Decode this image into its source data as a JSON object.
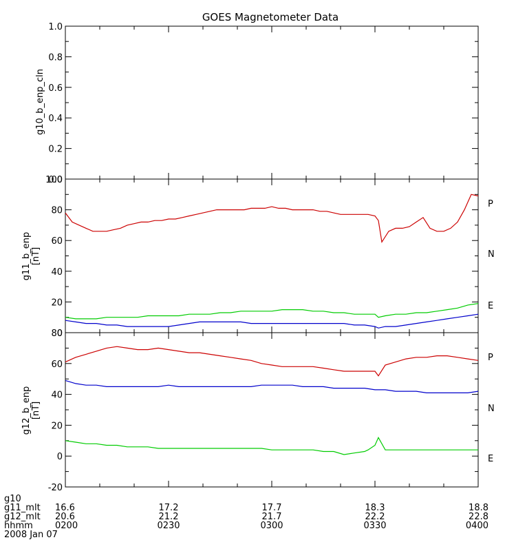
{
  "title": "GOES Magnetometer Data",
  "colors": {
    "P": "#cc0000",
    "N": "#00cc00",
    "E": "#0000cc"
  },
  "chart_data": [
    {
      "type": "line",
      "ylabel": "g10_b_enp_cln",
      "ylim": [
        0,
        1
      ],
      "yticks": [
        0.0,
        0.2,
        0.4,
        0.6,
        0.8,
        1.0
      ],
      "ytick_labels": [
        "0.0",
        "0.2",
        "0.4",
        "0.6",
        "0.8",
        "1.0"
      ],
      "series": []
    },
    {
      "type": "line",
      "ylabel": "g11_b_enp",
      "yunit": "[nT]",
      "ylim": [
        0,
        100
      ],
      "yticks": [
        0,
        20,
        40,
        60,
        80,
        100
      ],
      "ytick_labels": [
        "0",
        "20",
        "40",
        "60",
        "80",
        "100"
      ],
      "series": [
        {
          "name": "P",
          "color": "#cc0000",
          "x": [
            "02:00",
            "02:02",
            "02:04",
            "02:06",
            "02:08",
            "02:10",
            "02:12",
            "02:14",
            "02:16",
            "02:18",
            "02:20",
            "02:22",
            "02:24",
            "02:26",
            "02:28",
            "02:30",
            "02:32",
            "02:34",
            "02:36",
            "02:38",
            "02:40",
            "02:42",
            "02:44",
            "02:46",
            "02:48",
            "02:50",
            "02:52",
            "02:54",
            "02:56",
            "02:58",
            "03:00",
            "03:02",
            "03:04",
            "03:06",
            "03:08",
            "03:10",
            "03:12",
            "03:14",
            "03:16",
            "03:18",
            "03:20",
            "03:22",
            "03:24",
            "03:26",
            "03:28",
            "03:30",
            "03:31",
            "03:32",
            "03:34",
            "03:36",
            "03:38",
            "03:40",
            "03:42",
            "03:44",
            "03:46",
            "03:48",
            "03:50",
            "03:52",
            "03:54",
            "03:56",
            "03:58",
            "04:00"
          ],
          "values": [
            78,
            72,
            70,
            68,
            66,
            66,
            66,
            67,
            68,
            70,
            71,
            72,
            72,
            73,
            73,
            74,
            74,
            75,
            76,
            77,
            78,
            79,
            80,
            80,
            80,
            80,
            80,
            81,
            81,
            81,
            82,
            81,
            81,
            80,
            80,
            80,
            80,
            79,
            79,
            78,
            77,
            77,
            77,
            77,
            77,
            76,
            73,
            59,
            66,
            68,
            68,
            69,
            72,
            75,
            68,
            66,
            66,
            68,
            72,
            80,
            90,
            89
          ]
        },
        {
          "name": "N",
          "color": "#00cc00",
          "x": [
            "02:00",
            "02:03",
            "02:06",
            "02:09",
            "02:12",
            "02:15",
            "02:18",
            "02:21",
            "02:24",
            "02:27",
            "02:30",
            "02:33",
            "02:36",
            "02:39",
            "02:42",
            "02:45",
            "02:48",
            "02:51",
            "02:54",
            "02:57",
            "03:00",
            "03:03",
            "03:06",
            "03:09",
            "03:12",
            "03:15",
            "03:18",
            "03:21",
            "03:24",
            "03:27",
            "03:30",
            "03:31",
            "03:33",
            "03:36",
            "03:39",
            "03:42",
            "03:45",
            "03:48",
            "03:51",
            "03:54",
            "03:57",
            "04:00"
          ],
          "values": [
            10,
            9,
            9,
            9,
            10,
            10,
            10,
            10,
            11,
            11,
            11,
            11,
            12,
            12,
            12,
            13,
            13,
            14,
            14,
            14,
            14,
            15,
            15,
            15,
            14,
            14,
            13,
            13,
            12,
            12,
            12,
            10,
            11,
            12,
            12,
            13,
            13,
            14,
            15,
            16,
            18,
            19
          ]
        },
        {
          "name": "E",
          "color": "#0000cc",
          "x": [
            "02:00",
            "02:03",
            "02:06",
            "02:09",
            "02:12",
            "02:15",
            "02:18",
            "02:21",
            "02:24",
            "02:27",
            "02:30",
            "02:33",
            "02:36",
            "02:39",
            "02:42",
            "02:45",
            "02:48",
            "02:51",
            "02:54",
            "02:57",
            "03:00",
            "03:03",
            "03:06",
            "03:09",
            "03:12",
            "03:15",
            "03:18",
            "03:21",
            "03:24",
            "03:27",
            "03:30",
            "03:31",
            "03:33",
            "03:36",
            "03:39",
            "03:42",
            "03:45",
            "03:48",
            "03:51",
            "03:54",
            "03:57",
            "04:00"
          ],
          "values": [
            8,
            7,
            6,
            6,
            5,
            5,
            4,
            4,
            4,
            4,
            4,
            5,
            6,
            7,
            7,
            7,
            7,
            7,
            6,
            6,
            6,
            6,
            6,
            6,
            6,
            6,
            6,
            6,
            5,
            5,
            4,
            3,
            4,
            4,
            5,
            6,
            7,
            8,
            9,
            10,
            11,
            12
          ]
        }
      ],
      "legend": [
        "P",
        "N",
        "E"
      ]
    },
    {
      "type": "line",
      "ylabel": "g12_b_enp",
      "yunit": "[nT]",
      "ylim": [
        -20,
        80
      ],
      "yticks": [
        -20,
        0,
        20,
        40,
        60,
        80
      ],
      "ytick_labels": [
        "-20",
        "0",
        "20",
        "40",
        "60",
        "80"
      ],
      "series": [
        {
          "name": "P",
          "color": "#cc0000",
          "x": [
            "02:00",
            "02:03",
            "02:06",
            "02:09",
            "02:12",
            "02:15",
            "02:18",
            "02:21",
            "02:24",
            "02:27",
            "02:30",
            "02:33",
            "02:36",
            "02:39",
            "02:42",
            "02:45",
            "02:48",
            "02:51",
            "02:54",
            "02:57",
            "03:00",
            "03:03",
            "03:06",
            "03:09",
            "03:12",
            "03:15",
            "03:18",
            "03:21",
            "03:24",
            "03:27",
            "03:30",
            "03:31",
            "03:33",
            "03:36",
            "03:39",
            "03:42",
            "03:45",
            "03:48",
            "03:51",
            "03:54",
            "03:57",
            "04:00"
          ],
          "values": [
            61,
            64,
            66,
            68,
            70,
            71,
            70,
            69,
            69,
            70,
            69,
            68,
            67,
            67,
            66,
            65,
            64,
            63,
            62,
            60,
            59,
            58,
            58,
            58,
            58,
            57,
            56,
            55,
            55,
            55,
            55,
            52,
            59,
            61,
            63,
            64,
            64,
            65,
            65,
            64,
            63,
            62
          ]
        },
        {
          "name": "E",
          "color": "#0000cc",
          "x": [
            "02:00",
            "02:03",
            "02:06",
            "02:09",
            "02:12",
            "02:15",
            "02:18",
            "02:21",
            "02:24",
            "02:27",
            "02:30",
            "02:33",
            "02:36",
            "02:39",
            "02:42",
            "02:45",
            "02:48",
            "02:51",
            "02:54",
            "02:57",
            "03:00",
            "03:03",
            "03:06",
            "03:09",
            "03:12",
            "03:15",
            "03:18",
            "03:21",
            "03:24",
            "03:27",
            "03:30",
            "03:33",
            "03:36",
            "03:39",
            "03:42",
            "03:45",
            "03:48",
            "03:51",
            "03:54",
            "03:57",
            "04:00"
          ],
          "values": [
            49,
            47,
            46,
            46,
            45,
            45,
            45,
            45,
            45,
            45,
            46,
            45,
            45,
            45,
            45,
            45,
            45,
            45,
            45,
            46,
            46,
            46,
            46,
            45,
            45,
            45,
            44,
            44,
            44,
            44,
            43,
            43,
            42,
            42,
            42,
            41,
            41,
            41,
            41,
            41,
            42
          ]
        },
        {
          "name": "N",
          "color": "#00cc00",
          "x": [
            "02:00",
            "02:03",
            "02:06",
            "02:09",
            "02:12",
            "02:15",
            "02:18",
            "02:21",
            "02:24",
            "02:27",
            "02:30",
            "02:33",
            "02:36",
            "02:39",
            "02:42",
            "02:45",
            "02:48",
            "02:51",
            "02:54",
            "02:57",
            "03:00",
            "03:03",
            "03:06",
            "03:09",
            "03:12",
            "03:15",
            "03:18",
            "03:21",
            "03:24",
            "03:27",
            "03:28",
            "03:30",
            "03:31",
            "03:33",
            "03:36",
            "03:39",
            "03:42",
            "03:45",
            "03:48",
            "03:51",
            "03:54",
            "03:57",
            "04:00"
          ],
          "values": [
            10,
            9,
            8,
            8,
            7,
            7,
            6,
            6,
            6,
            5,
            5,
            5,
            5,
            5,
            5,
            5,
            5,
            5,
            5,
            5,
            4,
            4,
            4,
            4,
            4,
            3,
            3,
            1,
            2,
            3,
            4,
            7,
            12,
            4,
            4,
            4,
            4,
            4,
            4,
            4,
            4,
            4,
            4
          ]
        }
      ],
      "legend": [
        "P",
        "N",
        "E"
      ]
    }
  ],
  "xaxis": {
    "min": "02:00",
    "max": "04:00",
    "ticks": [
      "02:00",
      "02:30",
      "03:00",
      "03:30",
      "04:00"
    ],
    "row_labels": [
      "g10",
      "g11_mlt",
      "g12_mlt",
      "hhmm",
      "2008 Jan 07"
    ],
    "rows": {
      "g11_mlt": [
        "16.6",
        "17.2",
        "17.7",
        "18.3",
        "18.8"
      ],
      "g12_mlt": [
        "20.6",
        "21.2",
        "21.7",
        "22.2",
        "22.8"
      ],
      "hhmm": [
        "0200",
        "0230",
        "0300",
        "0330",
        "0400"
      ]
    }
  }
}
